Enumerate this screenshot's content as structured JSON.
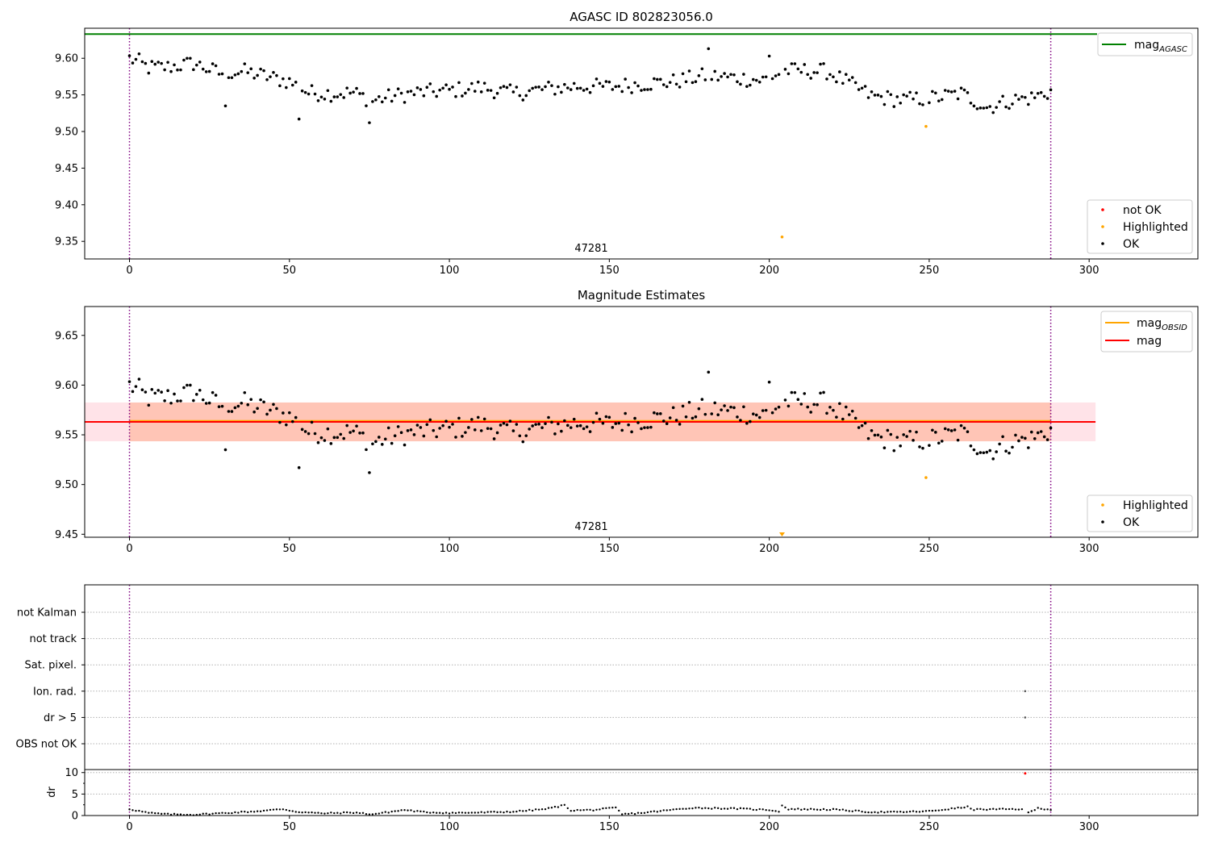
{
  "chart_data": [
    {
      "type": "scatter",
      "title": "AGASC ID 802823056.0",
      "xlabel": "",
      "ylabel": "",
      "xlim": [
        -14,
        334
      ],
      "ylim": [
        9.326,
        9.641
      ],
      "x_ticks": [
        "0",
        "50",
        "100",
        "150",
        "200",
        "250",
        "300"
      ],
      "y_ticks": [
        "9.35",
        "9.40",
        "9.45",
        "9.50",
        "9.55",
        "9.60"
      ],
      "legend_top": {
        "position": "upper right",
        "entries": [
          {
            "label": "mag",
            "subscript": "AGASC",
            "color": "#008000"
          }
        ]
      },
      "legend_bottom": {
        "position": "lower right",
        "entries": [
          {
            "label": "not OK",
            "color": "#ff0000"
          },
          {
            "label": "Highlighted",
            "color": "#ffa500"
          },
          {
            "label": "OK",
            "color": "#000000"
          }
        ]
      },
      "hline": {
        "name": "mag AGASC",
        "y": 9.633,
        "color": "#008000"
      },
      "vlines": [
        0,
        288
      ],
      "obsid_label": {
        "text": "47281",
        "x": 150
      },
      "highlighted": [
        {
          "x": 204,
          "y": 9.356
        },
        {
          "x": 249,
          "y": 9.507
        }
      ]
    },
    {
      "type": "scatter",
      "title": "Magnitude Estimates",
      "xlabel": "",
      "ylabel": "",
      "xlim": [
        -14,
        334
      ],
      "ylim": [
        9.447,
        9.679
      ],
      "x_ticks": [
        "0",
        "50",
        "100",
        "150",
        "200",
        "250",
        "300"
      ],
      "y_ticks": [
        "9.45",
        "9.50",
        "9.55",
        "9.60",
        "9.65"
      ],
      "legend_top": {
        "position": "upper right",
        "entries": [
          {
            "label": "mag",
            "subscript": "OBSID",
            "color": "#ffa500"
          },
          {
            "label": "mag",
            "color": "#ff0000"
          }
        ]
      },
      "legend_bottom": {
        "position": "lower right",
        "entries": [
          {
            "label": "Highlighted",
            "color": "#ffa500"
          },
          {
            "label": "OK",
            "color": "#000000"
          }
        ]
      },
      "mag_line": {
        "y": 9.563,
        "color": "#ff0000",
        "band": [
          9.5435,
          9.5825
        ],
        "band_color": "#ffc0cb",
        "xrange": [
          -14,
          302
        ]
      },
      "mag_obsid_line": {
        "y": 9.564,
        "color": "#ffa500",
        "band": [
          9.5435,
          9.5825
        ],
        "band_color": "#ffa07a",
        "xrange": [
          0,
          288
        ]
      },
      "vlines": [
        0,
        288
      ],
      "obsid_label": {
        "text": "47281",
        "x": 150
      },
      "highlighted": [
        {
          "x": 204,
          "y": 9.45,
          "marker": "down-triangle"
        },
        {
          "x": 249,
          "y": 9.507
        }
      ]
    },
    {
      "type": "scatter",
      "title": "",
      "xlabel": "",
      "ylabel": "",
      "xlim": [
        -14,
        334
      ],
      "categories": [
        "not Kalman",
        "not track",
        "Sat. pixel.",
        "Ion. rad.",
        "dr > 5",
        "OBS not OK"
      ],
      "flag_points": [
        {
          "x": 280,
          "flag": "Ion. rad."
        },
        {
          "x": 280,
          "flag": "dr > 5"
        }
      ],
      "vlines": [
        0,
        288
      ],
      "grid": "dotted horizontal",
      "x_ticks": [
        "0",
        "50",
        "100",
        "150",
        "200",
        "250",
        "300"
      ]
    },
    {
      "type": "scatter",
      "title": "",
      "xlabel": "",
      "ylabel": "dr",
      "xlim": [
        -14,
        334
      ],
      "ylim": [
        0,
        10.7
      ],
      "y_ticks": [
        "0",
        "5",
        "10"
      ],
      "x_ticks": [
        "0",
        "50",
        "100",
        "150",
        "200",
        "250",
        "300"
      ],
      "vlines": [
        0,
        288
      ],
      "outlier": {
        "x": 280,
        "y": 9.8,
        "color": "#ff0000"
      }
    }
  ]
}
